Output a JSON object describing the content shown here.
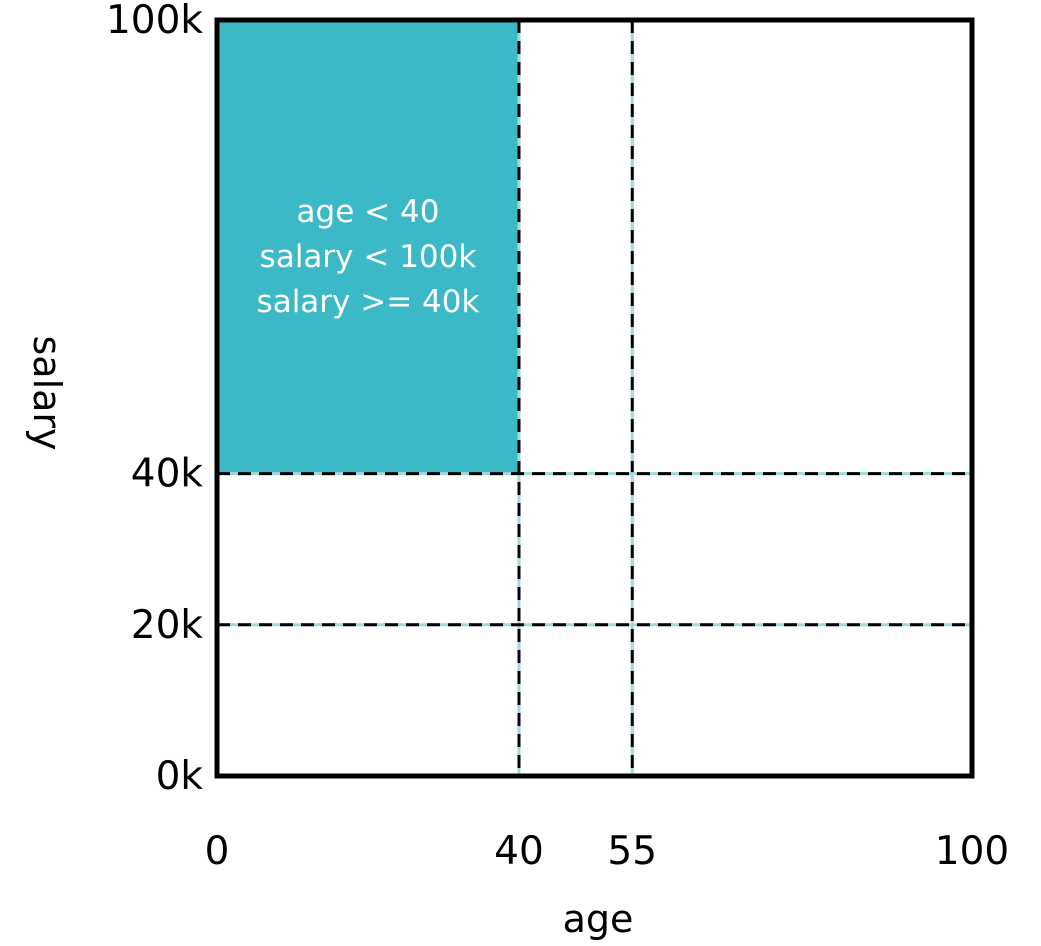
{
  "diagram": {
    "x_axis": {
      "label": "age",
      "min": 0,
      "max": 100,
      "ticks": [
        {
          "value": 0,
          "label": "0"
        },
        {
          "value": 40,
          "label": "40"
        },
        {
          "value": 55,
          "label": "55"
        },
        {
          "value": 100,
          "label": "100"
        }
      ]
    },
    "y_axis": {
      "label": "salary",
      "min": 0,
      "max": 100,
      "ticks": [
        {
          "value": 0,
          "label": "0k"
        },
        {
          "value": 20,
          "label": "20k"
        },
        {
          "value": 40,
          "label": "40k"
        },
        {
          "value": 100,
          "label": "100k"
        }
      ]
    },
    "splits": {
      "age": [
        40,
        55
      ],
      "salary": [
        20,
        40
      ]
    },
    "highlighted_region": {
      "age_min": 0,
      "age_max": 40,
      "salary_min": 40,
      "salary_max": 100,
      "color": "#3cb9c6",
      "text_color": "#ffffff",
      "conditions": [
        "age < 40",
        "salary < 100k",
        "salary >= 40k"
      ]
    },
    "colors": {
      "frame": "#000000",
      "split_line": "#000000",
      "split_line_underlay": "#9fd9df"
    }
  }
}
